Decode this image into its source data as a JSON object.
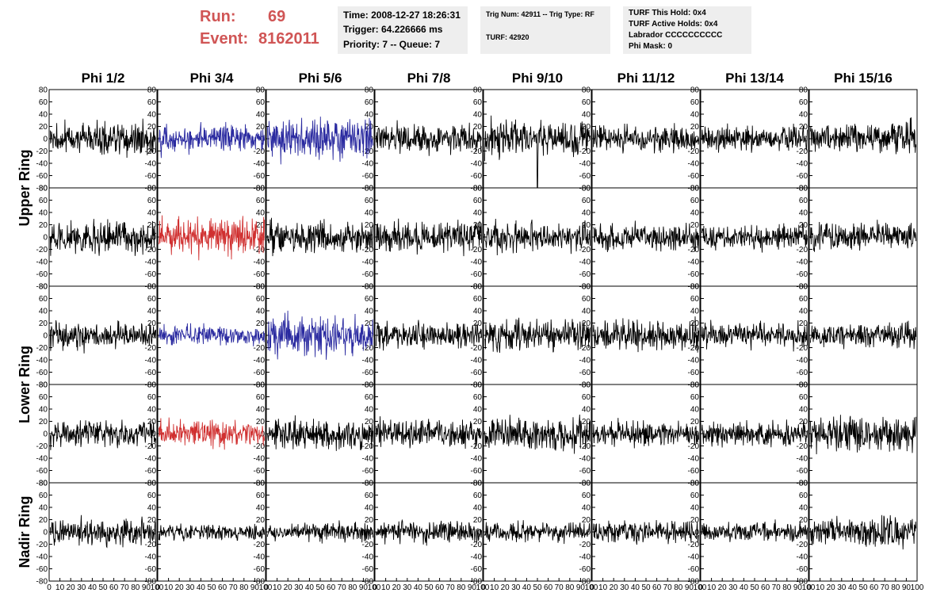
{
  "header": {
    "run_label": "Run:",
    "run_value": "69",
    "event_label": "Event:",
    "event_value": "8162011"
  },
  "timing": {
    "time": "Time: 2008-12-27 18:26:31",
    "trigger": "Trigger: 64.226666 ms",
    "priority": "Priority: 7 -- Queue: 7"
  },
  "trigger_info": {
    "trig": "Trig Num: 42911 -- Trig Type: RF",
    "turf": "TURF: 42920"
  },
  "turf_info": {
    "this_hold": "TURF This Hold: 0x4",
    "active_holds": "TURF Active Holds: 0x4",
    "labrador": "Labrador CCCCCCCCCC",
    "phi_mask": "Phi Mask: 0"
  },
  "chart_data": {
    "type": "line",
    "columns": [
      "Phi 1/2",
      "Phi 3/4",
      "Phi 5/6",
      "Phi 7/8",
      "Phi 9/10",
      "Phi 11/12",
      "Phi 13/14",
      "Phi 15/16"
    ],
    "row_groups": [
      "Upper Ring",
      "Lower Ring",
      "Nadir Ring"
    ],
    "ylim": [
      -80,
      80
    ],
    "yticks": [
      "80",
      "60",
      "40",
      "20",
      "0",
      "-20",
      "-40",
      "-60",
      "-80"
    ],
    "xlim": [
      0,
      100
    ],
    "xticks": [
      "0",
      "10",
      "20",
      "30",
      "40",
      "50",
      "60",
      "70",
      "80",
      "90",
      "100"
    ],
    "samples_per_trace": 260,
    "colors": {
      "default": "#000000",
      "highlight_v": "#2a2aa0",
      "highlight_h": "#d03030"
    },
    "panels": [
      {
        "row": 0,
        "col": 0,
        "amplitude": 18,
        "color": "default"
      },
      {
        "row": 0,
        "col": 1,
        "amplitude": 16,
        "color": "highlight_v"
      },
      {
        "row": 0,
        "col": 2,
        "amplitude": 22,
        "color": "highlight_v"
      },
      {
        "row": 0,
        "col": 3,
        "amplitude": 16,
        "color": "default"
      },
      {
        "row": 0,
        "col": 4,
        "amplitude": 22,
        "color": "default",
        "spike": {
          "x": 50,
          "y": -80
        }
      },
      {
        "row": 0,
        "col": 5,
        "amplitude": 15,
        "color": "default"
      },
      {
        "row": 0,
        "col": 6,
        "amplitude": 15,
        "color": "default"
      },
      {
        "row": 0,
        "col": 7,
        "amplitude": 20,
        "color": "default"
      },
      {
        "row": 1,
        "col": 0,
        "amplitude": 18,
        "color": "default"
      },
      {
        "row": 1,
        "col": 1,
        "amplitude": 20,
        "color": "highlight_h"
      },
      {
        "row": 1,
        "col": 2,
        "amplitude": 18,
        "color": "default"
      },
      {
        "row": 1,
        "col": 3,
        "amplitude": 18,
        "color": "default"
      },
      {
        "row": 1,
        "col": 4,
        "amplitude": 17,
        "color": "default"
      },
      {
        "row": 1,
        "col": 5,
        "amplitude": 15,
        "color": "default"
      },
      {
        "row": 1,
        "col": 6,
        "amplitude": 14,
        "color": "default"
      },
      {
        "row": 1,
        "col": 7,
        "amplitude": 16,
        "color": "default"
      },
      {
        "row": 2,
        "col": 0,
        "amplitude": 15,
        "color": "default"
      },
      {
        "row": 2,
        "col": 1,
        "amplitude": 12,
        "color": "highlight_v"
      },
      {
        "row": 2,
        "col": 2,
        "amplitude": 22,
        "color": "highlight_v"
      },
      {
        "row": 2,
        "col": 3,
        "amplitude": 15,
        "color": "default"
      },
      {
        "row": 2,
        "col": 4,
        "amplitude": 17,
        "color": "default"
      },
      {
        "row": 2,
        "col": 5,
        "amplitude": 17,
        "color": "default"
      },
      {
        "row": 2,
        "col": 6,
        "amplitude": 14,
        "color": "default"
      },
      {
        "row": 2,
        "col": 7,
        "amplitude": 14,
        "color": "default"
      },
      {
        "row": 3,
        "col": 0,
        "amplitude": 16,
        "color": "default"
      },
      {
        "row": 3,
        "col": 1,
        "amplitude": 15,
        "color": "highlight_h"
      },
      {
        "row": 3,
        "col": 2,
        "amplitude": 17,
        "color": "default"
      },
      {
        "row": 3,
        "col": 3,
        "amplitude": 16,
        "color": "default"
      },
      {
        "row": 3,
        "col": 4,
        "amplitude": 20,
        "color": "default"
      },
      {
        "row": 3,
        "col": 5,
        "amplitude": 15,
        "color": "default"
      },
      {
        "row": 3,
        "col": 6,
        "amplitude": 14,
        "color": "default"
      },
      {
        "row": 3,
        "col": 7,
        "amplitude": 19,
        "color": "default"
      },
      {
        "row": 4,
        "col": 0,
        "amplitude": 15,
        "color": "default"
      },
      {
        "row": 4,
        "col": 1,
        "amplitude": 9,
        "color": "default"
      },
      {
        "row": 4,
        "col": 2,
        "amplitude": 11,
        "color": "default"
      },
      {
        "row": 4,
        "col": 3,
        "amplitude": 13,
        "color": "default"
      },
      {
        "row": 4,
        "col": 4,
        "amplitude": 11,
        "color": "default"
      },
      {
        "row": 4,
        "col": 5,
        "amplitude": 13,
        "color": "default"
      },
      {
        "row": 4,
        "col": 6,
        "amplitude": 11,
        "color": "default"
      },
      {
        "row": 4,
        "col": 7,
        "amplitude": 17,
        "color": "default"
      }
    ]
  }
}
